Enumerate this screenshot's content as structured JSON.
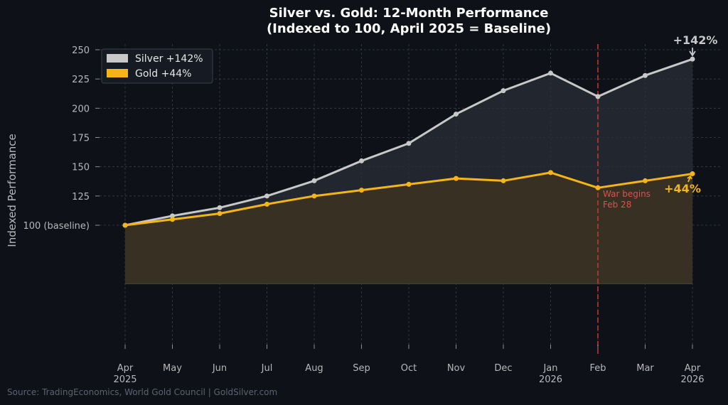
{
  "chart_data": {
    "type": "line",
    "title_line1": "Silver vs. Gold: 12-Month Performance",
    "title_line2": "(Indexed to 100, April 2025 = Baseline)",
    "ylabel": "Indexed Performance",
    "ylim": [
      50,
      255
    ],
    "yticks": [
      {
        "value": 100,
        "label": "100 (baseline)"
      },
      {
        "value": 125,
        "label": "125"
      },
      {
        "value": 150,
        "label": "150"
      },
      {
        "value": 175,
        "label": "175"
      },
      {
        "value": 200,
        "label": "200"
      },
      {
        "value": 225,
        "label": "225"
      },
      {
        "value": 250,
        "label": "250"
      }
    ],
    "fill_floor": 50,
    "categories": [
      {
        "line1": "Apr",
        "line2": "2025"
      },
      {
        "line1": "May",
        "line2": ""
      },
      {
        "line1": "Jun",
        "line2": ""
      },
      {
        "line1": "Jul",
        "line2": ""
      },
      {
        "line1": "Aug",
        "line2": ""
      },
      {
        "line1": "Sep",
        "line2": ""
      },
      {
        "line1": "Oct",
        "line2": ""
      },
      {
        "line1": "Nov",
        "line2": ""
      },
      {
        "line1": "Dec",
        "line2": ""
      },
      {
        "line1": "Jan",
        "line2": "2026"
      },
      {
        "line1": "Feb",
        "line2": ""
      },
      {
        "line1": "Mar",
        "line2": ""
      },
      {
        "line1": "Apr",
        "line2": "2026"
      }
    ],
    "series": [
      {
        "name": "Silver",
        "legend_label": "Silver  +142%",
        "color": "#c8c8c8",
        "fill_color": "#2a2e38",
        "values": [
          100,
          108,
          115,
          125,
          138,
          155,
          170,
          195,
          215,
          230,
          210,
          228,
          242
        ],
        "end_annotation": "+142%"
      },
      {
        "name": "Gold",
        "legend_label": "Gold  +44%",
        "color": "#f5b515",
        "fill_color": "#3a3222",
        "values": [
          100,
          105,
          110,
          118,
          125,
          130,
          135,
          140,
          138,
          145,
          132,
          138,
          144
        ],
        "end_annotation": "+44%"
      }
    ],
    "event": {
      "index": 10,
      "label_line1": "War begins",
      "label_line2": "Feb 28",
      "color": "#c0392b"
    },
    "legend_position": "top-left",
    "grid": true
  },
  "source": "Source: TradingEconomics, World Gold Council | GoldSilver.com"
}
